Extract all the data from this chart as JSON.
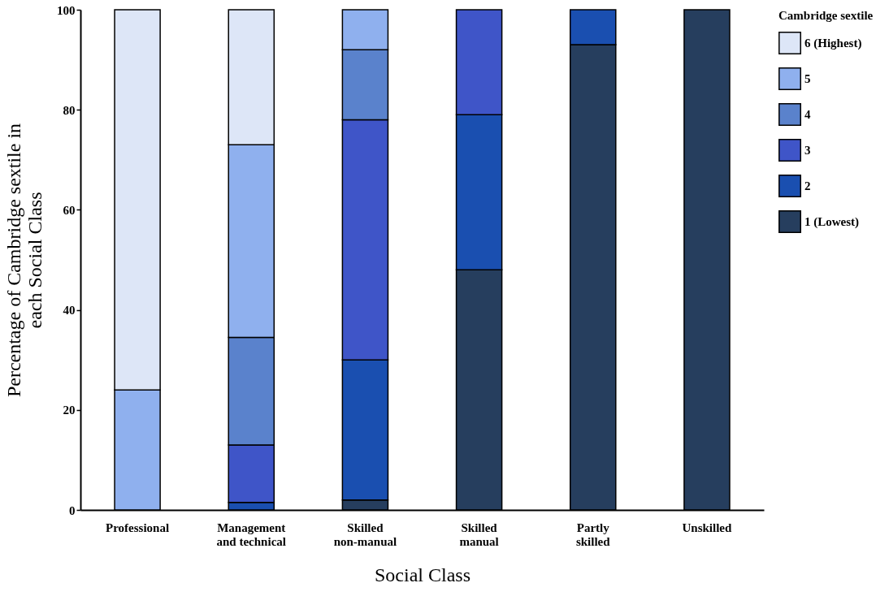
{
  "chart_data": {
    "type": "bar",
    "stacked": true,
    "xlabel": "Social Class",
    "ylabel": "Percentage of Cambridge sextile in each Social Class",
    "legend_title": "Cambridge sextile",
    "legend": "top right",
    "categories": [
      "Professional",
      "Management and technical",
      "Skilled non-manual",
      "Skilled manual",
      "Partly skilled",
      "Unskilled"
    ],
    "ylim": [
      0,
      100
    ],
    "yticks": [
      0,
      20,
      40,
      60,
      80,
      100
    ],
    "grid": false,
    "series": [
      {
        "name": "1 (Lowest)",
        "color": "#263e5e",
        "values": [
          null,
          null,
          2,
          48,
          93,
          100
        ]
      },
      {
        "name": "2",
        "color": "#1a4fb0",
        "values": [
          null,
          1.5,
          28,
          31,
          7,
          null
        ]
      },
      {
        "name": "3",
        "color": "#3f55c8",
        "values": [
          null,
          11.5,
          48,
          21,
          null,
          null
        ]
      },
      {
        "name": "4",
        "color": "#5a82cc",
        "values": [
          null,
          21.5,
          14,
          null,
          null,
          null
        ]
      },
      {
        "name": "5",
        "color": "#8fb0ee",
        "values": [
          24,
          38.5,
          8,
          null,
          null,
          null
        ]
      },
      {
        "name": "6 (Highest)",
        "color": "#dde6f7",
        "values": [
          76,
          27,
          null,
          null,
          null,
          null
        ]
      }
    ]
  }
}
